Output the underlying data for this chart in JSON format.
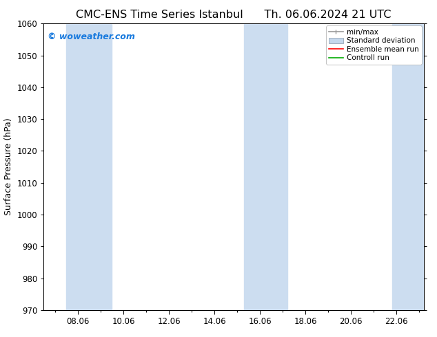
{
  "title_left": "CMC-ENS Time Series Istanbul",
  "title_right": "Th. 06.06.2024 21 UTC",
  "ylabel": "Surface Pressure (hPa)",
  "ylim": [
    970,
    1060
  ],
  "yticks": [
    970,
    980,
    990,
    1000,
    1010,
    1020,
    1030,
    1040,
    1050,
    1060
  ],
  "xtick_positions": [
    8,
    10,
    12,
    14,
    16,
    18,
    20,
    22
  ],
  "xtick_labels": [
    "08.06",
    "10.06",
    "12.06",
    "14.06",
    "16.06",
    "18.06",
    "20.06",
    "22.06"
  ],
  "xlim": [
    6.5,
    23.2
  ],
  "watermark": "© woweather.com",
  "watermark_color": "#1a7bde",
  "bg_color": "#ffffff",
  "plot_bg_color": "#ffffff",
  "shaded_bands": [
    {
      "x_start": 7.5,
      "x_end": 9.5
    },
    {
      "x_start": 15.3,
      "x_end": 17.2
    },
    {
      "x_start": 21.8,
      "x_end": 23.3
    }
  ],
  "shaded_color": "#ccddf0",
  "legend_entries": [
    {
      "label": "min/max",
      "color": "#999999",
      "lw": 1.2,
      "style": "minmax"
    },
    {
      "label": "Standard deviation",
      "color": "#c5d8ed",
      "lw": 5,
      "style": "band"
    },
    {
      "label": "Ensemble mean run",
      "color": "#ff0000",
      "lw": 1.2,
      "style": "line"
    },
    {
      "label": "Controll run",
      "color": "#00aa00",
      "lw": 1.2,
      "style": "line"
    }
  ],
  "title_fontsize": 11.5,
  "axis_label_fontsize": 9,
  "tick_fontsize": 8.5,
  "legend_fontsize": 7.5,
  "watermark_fontsize": 9
}
